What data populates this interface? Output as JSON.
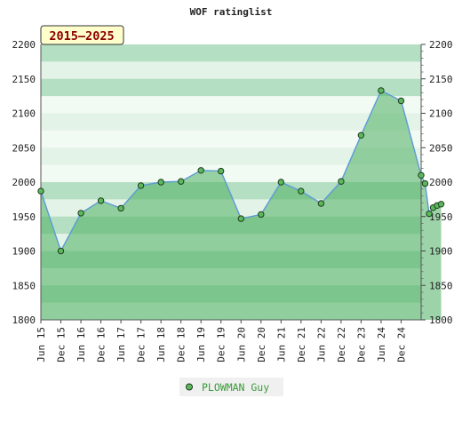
{
  "chart_data": {
    "type": "line",
    "title": "WOF ratinglist",
    "badge": "2015–2025",
    "xlabel": "",
    "ylabel": "",
    "ylim": [
      1800,
      2200
    ],
    "y_ticks": [
      1800,
      1850,
      1900,
      1950,
      2000,
      2050,
      2100,
      2150,
      2200
    ],
    "x_tick_labels": [
      "Jun 15",
      "Dec 15",
      "Jun 16",
      "Dec 16",
      "Jun 17",
      "Dec 17",
      "Jun 18",
      "Dec 18",
      "Jun 19",
      "Dec 19",
      "Jun 20",
      "Dec 20",
      "Jun 21",
      "Dec 21",
      "Jun 22",
      "Dec 22",
      "Dec 23",
      "Jun 24",
      "Dec 24"
    ],
    "legend_position": "bottom",
    "colors": {
      "line": "#5b9bd5",
      "marker_fill": "#5cb85c",
      "marker_stroke": "#1f3d1f",
      "area_fill": "#4caf60",
      "band_dark": "#b5dfc2",
      "band_light": "#e4f3e8",
      "band_white": "#f2faf4",
      "badge_bg": "#ffffcc",
      "badge_text": "#8b0000",
      "legend_text": "#3a9a3a",
      "legend_bg": "#f0f0f0"
    },
    "series": [
      {
        "name": "PLOWMAN Guy",
        "points": [
          {
            "t": 0.0,
            "y": 1987
          },
          {
            "t": 1.0,
            "y": 1900
          },
          {
            "t": 2.0,
            "y": 1955
          },
          {
            "t": 3.0,
            "y": 1973
          },
          {
            "t": 4.0,
            "y": 1962
          },
          {
            "t": 5.0,
            "y": 1995
          },
          {
            "t": 6.0,
            "y": 2000
          },
          {
            "t": 7.0,
            "y": 2001
          },
          {
            "t": 8.0,
            "y": 2017
          },
          {
            "t": 9.0,
            "y": 2016
          },
          {
            "t": 10.0,
            "y": 1947
          },
          {
            "t": 11.0,
            "y": 1953
          },
          {
            "t": 12.0,
            "y": 2000
          },
          {
            "t": 13.0,
            "y": 1987
          },
          {
            "t": 14.0,
            "y": 1969
          },
          {
            "t": 15.0,
            "y": 2001
          },
          {
            "t": 16.0,
            "y": 2068
          },
          {
            "t": 17.0,
            "y": 2133
          },
          {
            "t": 18.0,
            "y": 2118
          },
          {
            "t": 19.0,
            "y": 2010
          },
          {
            "t": 19.2,
            "y": 1998
          },
          {
            "t": 19.4,
            "y": 1954
          },
          {
            "t": 19.6,
            "y": 1963
          },
          {
            "t": 19.8,
            "y": 1966
          },
          {
            "t": 20.0,
            "y": 1968
          }
        ]
      }
    ]
  }
}
